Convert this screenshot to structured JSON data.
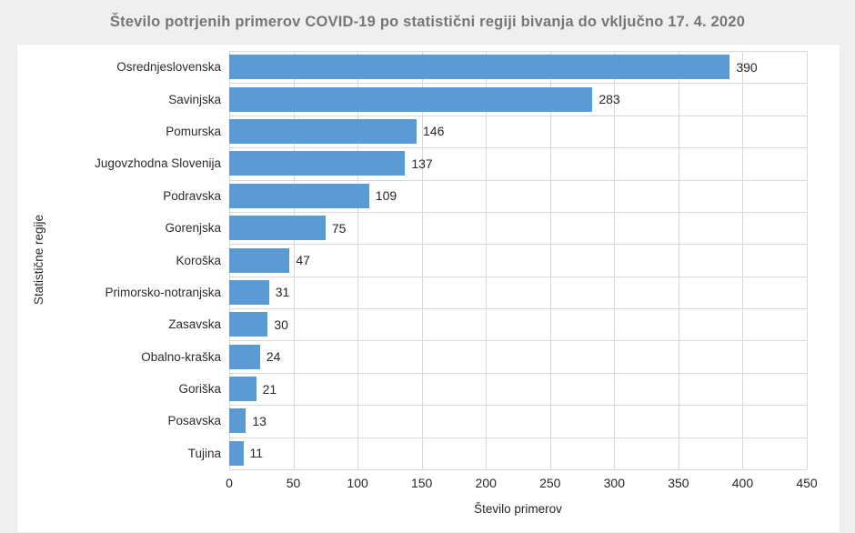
{
  "page": {
    "title": "Število potrjenih primerov COVID-19 po statistični regiji bivanja do vključno 17. 4. 2020"
  },
  "chart_data": {
    "type": "bar",
    "orientation": "horizontal",
    "title": "Število potrjenih primerov COVID-19 po statistični regiji bivanja do vključno 17. 4. 2020",
    "categories": [
      "Osrednjeslovenska",
      "Savinjska",
      "Pomurska",
      "Jugovzhodna Slovenija",
      "Podravska",
      "Gorenjska",
      "Koroška",
      "Primorsko-notranjska",
      "Zasavska",
      "Obalno-kraška",
      "Goriška",
      "Posavska",
      "Tujina"
    ],
    "values": [
      390,
      283,
      146,
      137,
      109,
      75,
      47,
      31,
      30,
      24,
      21,
      13,
      11
    ],
    "xlabel": "Število primerov",
    "ylabel": "Statistične regije",
    "xlim": [
      0,
      450
    ],
    "xticks": [
      0,
      50,
      100,
      150,
      200,
      250,
      300,
      350,
      400,
      450
    ],
    "grid": true,
    "data_labels": true,
    "legend": "none",
    "colors": {
      "bar": "#5b9bd5",
      "gridline": "#d9d9d9",
      "page_background": "#f0eff0",
      "panel_background": "#ffffff",
      "title_text": "#76767a",
      "label_text": "#262626"
    }
  }
}
